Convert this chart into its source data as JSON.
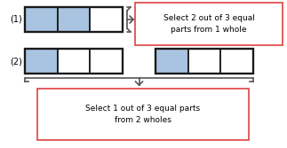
{
  "fill_color": "#a8c4e0",
  "empty_color": "#ffffff",
  "border_color": "#1a1a1a",
  "bg_color": "#ffffff",
  "label1": "(1)",
  "label2": "(2)",
  "box1_text": "Select 2 out of 3 equal\nparts from 1 whole",
  "box2_text": "Select 1 out of 3 equal parts\nfrom 2 wholes",
  "box1_edge": "#e05050",
  "box2_edge": "#e05050",
  "brace_color": "#555555",
  "row1_selected": [
    1,
    1,
    0
  ],
  "row2a_selected": [
    1,
    0,
    0
  ],
  "row2b_selected": [
    1,
    0,
    0
  ],
  "font_size_label": 7.0,
  "font_size_box": 6.5
}
